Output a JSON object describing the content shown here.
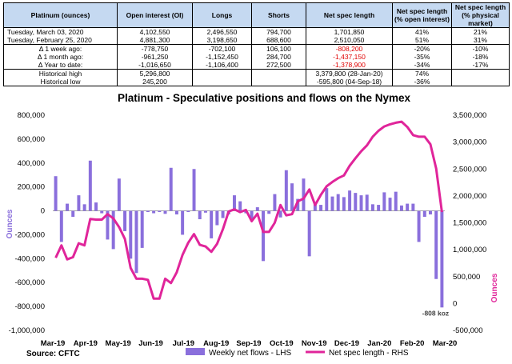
{
  "table": {
    "headers": [
      "Platinum (ounces)",
      "Open interest (OI)",
      "Longs",
      "Shorts",
      "Net spec length",
      "Net spec length (% open interest)",
      "Net spec length (% physical market)"
    ],
    "rows": [
      [
        "Tuesday, March 03, 2020",
        "4,102,550",
        "2,496,550",
        "794,700",
        "1,701,850",
        "41%",
        "21%"
      ],
      [
        "Tuesday, February 25, 2020",
        "4,881,300",
        "3,198,650",
        "688,600",
        "2,510,050",
        "51%",
        "31%"
      ],
      [
        "Δ 1 week ago:",
        "-778,750",
        "-702,100",
        "106,100",
        "-808,200",
        "-20%",
        "-10%"
      ],
      [
        "Δ 1 month ago:",
        "-961,250",
        "-1,152,450",
        "284,700",
        "-1,437,150",
        "-35%",
        "-18%"
      ],
      [
        "Δ Year to date:",
        "-1,016,650",
        "-1,106,400",
        "272,500",
        "-1,378,900",
        "-34%",
        "-17%"
      ],
      [
        "Historical high",
        "5,296,800",
        "",
        "",
        "3,379,800 (28-Jan-20)",
        "74%",
        ""
      ],
      [
        "Historical low",
        "245,200",
        "",
        "",
        "-595,800 (04-Sep-18)",
        "-36%",
        ""
      ]
    ]
  },
  "chart_data": {
    "type": "bar+line",
    "title": "Platinum - Speculative positions and flows on the Nymex",
    "source": "Source: CFTC",
    "left_axis": {
      "label": "Ounces",
      "min": -1000000,
      "max": 800000,
      "ticks": [
        "800,000",
        "600,000",
        "400,000",
        "200,000",
        "0",
        "-200,000",
        "-400,000",
        "-600,000",
        "-800,000",
        "-1,000,000"
      ]
    },
    "right_axis": {
      "label": "Ounces",
      "min": -500000,
      "max": 3500000,
      "ticks": [
        "3,500,000",
        "3,000,000",
        "2,500,000",
        "2,000,000",
        "1,500,000",
        "1,000,000",
        "500,000",
        "0",
        "-500,000"
      ]
    },
    "x_ticks": [
      "Mar-19",
      "Apr-19",
      "May-19",
      "Jun-19",
      "Jul-19",
      "Aug-19",
      "Sep-19",
      "Oct-19",
      "Nov-19",
      "Dec-19",
      "Jan-20",
      "Feb-20",
      "Mar-20"
    ],
    "annotation": "-808 koz",
    "series": [
      {
        "name": "Weekly net flows - LHS",
        "type": "bar",
        "axis": "left",
        "color": "#8a6fdc",
        "values": [
          290000,
          -260000,
          60000,
          -50000,
          130000,
          55000,
          420000,
          70000,
          -20000,
          -240000,
          -320000,
          270000,
          -170000,
          -400000,
          -520000,
          -310000,
          -10000,
          -20000,
          -10000,
          -25000,
          360000,
          -30000,
          -200000,
          -10000,
          350000,
          -70000,
          -15000,
          -230000,
          -120000,
          -60000,
          -30000,
          130000,
          80000,
          -20000,
          -80000,
          30000,
          -420000,
          -25000,
          140000,
          -55000,
          340000,
          230000,
          100000,
          270000,
          -380000,
          55000,
          50000,
          190000,
          120000,
          140000,
          115000,
          170000,
          150000,
          130000,
          135000,
          55000,
          50000,
          155000,
          110000,
          160000,
          45000,
          60000,
          60000,
          -260000,
          -50000,
          -30000,
          -570000,
          -808000
        ]
      },
      {
        "name": "Net spec length - RHS",
        "type": "line",
        "axis": "right",
        "color": "#e0259a",
        "values": [
          850000,
          1080000,
          820000,
          860000,
          1120000,
          1080000,
          1570000,
          1560000,
          1560000,
          1660000,
          1580000,
          1420000,
          1200000,
          660000,
          460000,
          460000,
          440000,
          90000,
          90000,
          460000,
          380000,
          580000,
          900000,
          1130000,
          1290000,
          1090000,
          1060000,
          960000,
          1110000,
          1380000,
          1710000,
          1750000,
          1700000,
          1740000,
          1530000,
          1670000,
          1330000,
          1330000,
          1500000,
          1830000,
          1640000,
          1660000,
          1900000,
          1950000,
          2120000,
          1830000,
          2020000,
          2180000,
          2260000,
          2330000,
          2380000,
          2560000,
          2700000,
          2830000,
          2940000,
          3100000,
          3210000,
          3290000,
          3330000,
          3360000,
          3380000,
          3280000,
          3130000,
          3100000,
          3100000,
          2960000,
          2510000,
          1700000
        ]
      }
    ],
    "legend": [
      "Weekly net flows - LHS",
      "Net spec length - RHS"
    ]
  }
}
